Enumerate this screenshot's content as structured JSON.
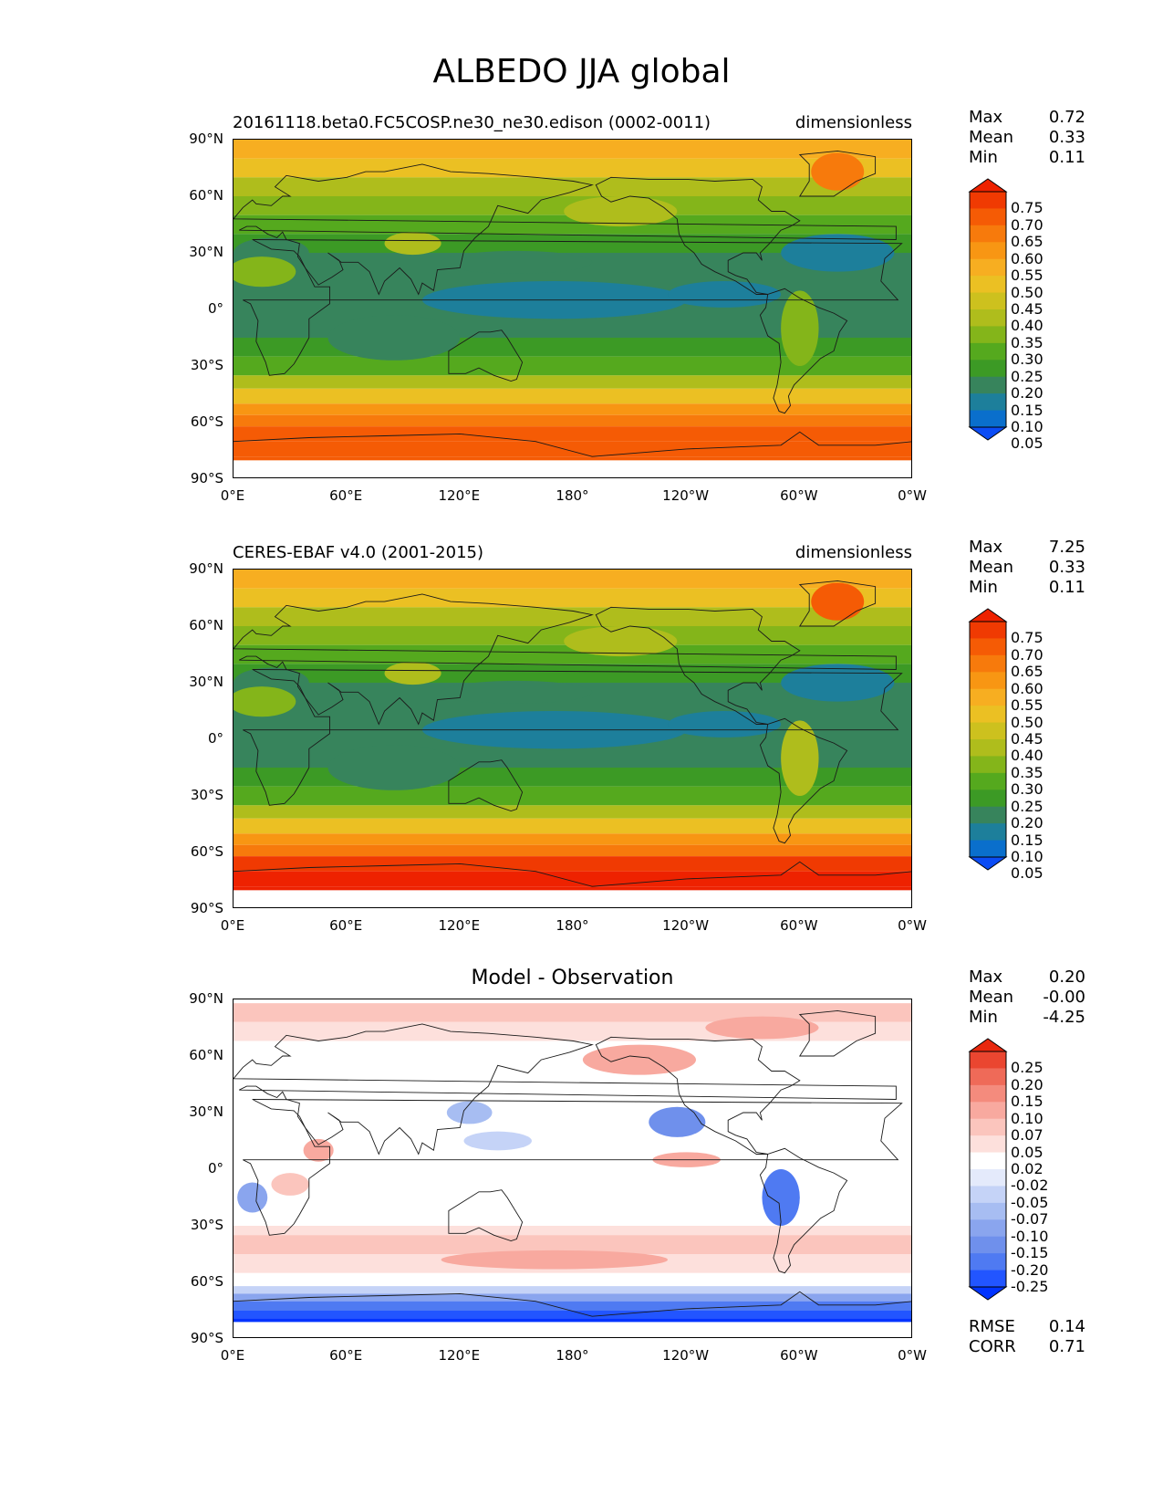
{
  "title": "ALBEDO JJA global",
  "panels": [
    {
      "id": "model",
      "title_left": "20161118.beta0.FC5COSP.ne30_ne30.edison (0002-0011)",
      "title_right": "dimensionless",
      "title_center": "",
      "stats": [
        {
          "label": "Max",
          "value": "0.72"
        },
        {
          "label": "Mean",
          "value": "0.33"
        },
        {
          "label": "Min",
          "value": "0.11"
        }
      ],
      "colorbar_labels": [
        "0.75",
        "0.70",
        "0.65",
        "0.60",
        "0.55",
        "0.50",
        "0.45",
        "0.40",
        "0.35",
        "0.30",
        "0.25",
        "0.20",
        "0.15",
        "0.10",
        "0.05"
      ]
    },
    {
      "id": "observation",
      "title_left": "CERES-EBAF v4.0 (2001-2015)",
      "title_right": "dimensionless",
      "title_center": "",
      "stats": [
        {
          "label": "Max",
          "value": "7.25"
        },
        {
          "label": "Mean",
          "value": "0.33"
        },
        {
          "label": "Min",
          "value": "0.11"
        }
      ],
      "colorbar_labels": [
        "0.75",
        "0.70",
        "0.65",
        "0.60",
        "0.55",
        "0.50",
        "0.45",
        "0.40",
        "0.35",
        "0.30",
        "0.25",
        "0.20",
        "0.15",
        "0.10",
        "0.05"
      ]
    },
    {
      "id": "difference",
      "title_left": "",
      "title_right": "",
      "title_center": "Model - Observation",
      "stats": [
        {
          "label": "Max",
          "value": "0.20"
        },
        {
          "label": "Mean",
          "value": "-0.00"
        },
        {
          "label": "Min",
          "value": "-4.25"
        }
      ],
      "colorbar_labels": [
        "0.25",
        "0.20",
        "0.15",
        "0.10",
        "0.07",
        "0.05",
        "0.02",
        "-0.02",
        "-0.05",
        "-0.07",
        "-0.10",
        "-0.15",
        "-0.20",
        "-0.25"
      ],
      "metrics": [
        {
          "label": "RMSE",
          "value": "0.14"
        },
        {
          "label": "CORR",
          "value": "0.71"
        }
      ]
    }
  ],
  "axes": {
    "lat_ticks": [
      "90°N",
      "60°N",
      "30°N",
      "0°",
      "30°S",
      "60°S",
      "90°S"
    ],
    "lon_ticks": [
      "0°E",
      "60°E",
      "120°E",
      "180°",
      "120°W",
      "60°W",
      "0°W"
    ]
  },
  "colors": {
    "albedo_scale": [
      "#0b4cf5",
      "#0a6fcc",
      "#1d7f9b",
      "#37845c",
      "#3c9a25",
      "#55a91e",
      "#84b51a",
      "#afbd1c",
      "#cdc11e",
      "#ebc023",
      "#f7ae21",
      "#f89613",
      "#f77a0c",
      "#f55b05",
      "#f03a02",
      "#ee2200"
    ],
    "diff_scale": [
      "#0033ff",
      "#2255ff",
      "#4f7af2",
      "#6f90ec",
      "#8aa5ee",
      "#a7bdf2",
      "#c5d3f7",
      "#e4eafb",
      "#ffffff",
      "#fde0dc",
      "#fbc5bd",
      "#f8a99f",
      "#f48b7d",
      "#ef6a58",
      "#ea4630",
      "#e8280e"
    ]
  }
}
